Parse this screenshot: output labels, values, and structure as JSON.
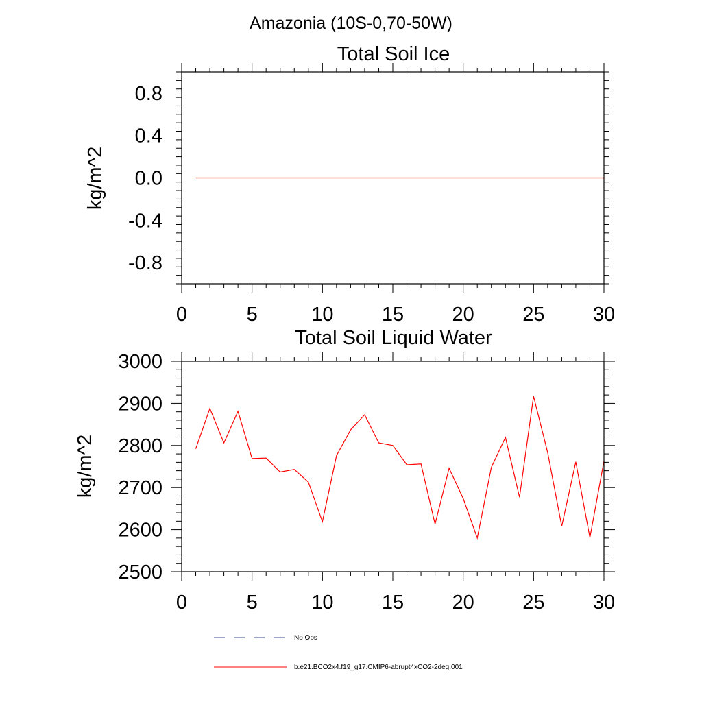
{
  "figure_title": "Amazonia (10S-0,70-50W)",
  "chart_data": [
    {
      "type": "line",
      "title": "Total Soil Ice",
      "xlabel": "",
      "ylabel": "kg/m^2",
      "xlim": [
        0,
        30
      ],
      "ylim": [
        -1.0,
        1.0
      ],
      "x_ticks": [
        0,
        5,
        10,
        15,
        20,
        25,
        30
      ],
      "x_tick_labels": [
        "0",
        "5",
        "10",
        "15",
        "20",
        "25",
        "30"
      ],
      "y_ticks": [
        -0.8,
        -0.4,
        0.0,
        0.4,
        0.8
      ],
      "y_tick_labels": [
        "-0.8",
        "-0.4",
        "0.0",
        "0.4",
        "0.8"
      ],
      "series": [
        {
          "name": "b.e21.BCO2x4.f19_g17.CMIP6-abrupt4xCO2-2deg.001",
          "color": "#ff0000",
          "x": [
            1,
            30
          ],
          "values": [
            0.0,
            0.0
          ]
        }
      ]
    },
    {
      "type": "line",
      "title": "Total Soil Liquid Water",
      "xlabel": "",
      "ylabel": "kg/m^2",
      "xlim": [
        0,
        30
      ],
      "ylim": [
        2500,
        3000
      ],
      "x_ticks": [
        0,
        5,
        10,
        15,
        20,
        25,
        30
      ],
      "x_tick_labels": [
        "0",
        "5",
        "10",
        "15",
        "20",
        "25",
        "30"
      ],
      "y_ticks": [
        2500,
        2600,
        2700,
        2800,
        2900,
        3000
      ],
      "y_tick_labels": [
        "2500",
        "2600",
        "2700",
        "2800",
        "2900",
        "3000"
      ],
      "series": [
        {
          "name": "b.e21.BCO2x4.f19_g17.CMIP6-abrupt4xCO2-2deg.001",
          "color": "#ff0000",
          "x": [
            1,
            2,
            3,
            4,
            5,
            6,
            7,
            8,
            9,
            10,
            11,
            12,
            13,
            14,
            15,
            16,
            17,
            18,
            19,
            20,
            21,
            22,
            23,
            24,
            25,
            26,
            27,
            28,
            29,
            30
          ],
          "values": [
            2792,
            2888,
            2806,
            2881,
            2769,
            2770,
            2737,
            2743,
            2713,
            2619,
            2776,
            2837,
            2873,
            2806,
            2800,
            2754,
            2756,
            2613,
            2746,
            2674,
            2580,
            2748,
            2819,
            2677,
            2917,
            2783,
            2608,
            2761,
            2581,
            2763
          ]
        }
      ]
    }
  ],
  "legend": [
    {
      "label": "No Obs",
      "color": "#3c4a8a",
      "style": "dashed"
    },
    {
      "label": "b.e21.BCO2x4.f19_g17.CMIP6-abrupt4xCO2-2deg.001",
      "color": "#ff0000",
      "style": "solid"
    }
  ]
}
